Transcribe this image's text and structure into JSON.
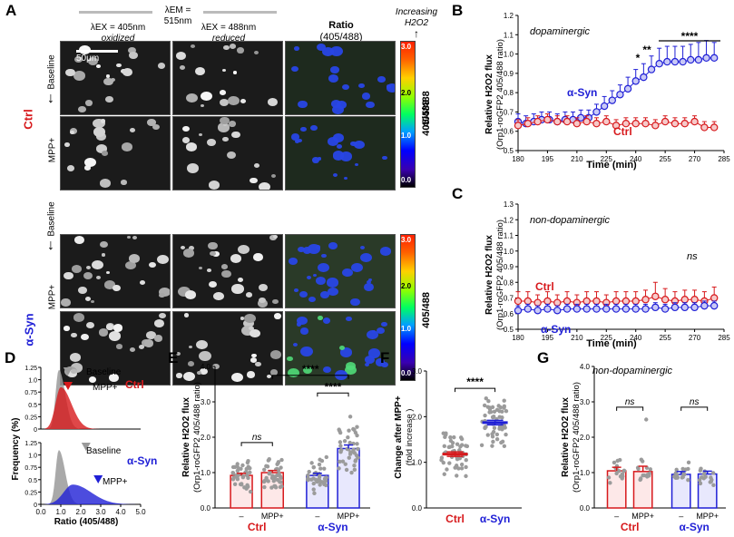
{
  "panelA": {
    "label": "A",
    "em_header": "λEM = 515nm",
    "col1": {
      "line1": "λEX = 405nm",
      "line2": "oxidized"
    },
    "col2": {
      "line1": "λEX = 488nm",
      "line2": "reduced"
    },
    "col3": {
      "line1": "Ratio",
      "line2": "(405/488)"
    },
    "colorbar_title": {
      "line1": "Increasing",
      "line2": "H2O2"
    },
    "scalebar": "50μm",
    "group1": "Ctrl",
    "group2": "α-Syn",
    "row_baseline": "Baseline",
    "row_mpp": "MPP+",
    "colorbar_ticks": [
      "3.0",
      "2.0",
      "1.0",
      "0.0"
    ],
    "colorbar_label": "405/488",
    "colors": {
      "ctrl": "#d7191c",
      "asyn": "#1f1fd6"
    }
  },
  "panelB": {
    "label": "B",
    "subtitle": "dopaminergic",
    "series_asyn": "α-Syn",
    "series_ctrl": "Ctrl",
    "sig": [
      "*",
      "**",
      "****"
    ]
  },
  "panelC": {
    "label": "C",
    "subtitle": "non-dopaminergic",
    "series_asyn": "α-Syn",
    "series_ctrl": "Ctrl",
    "ns": "ns"
  },
  "panelD": {
    "label": "D",
    "ylabel": "Frequency (%)",
    "xlabel": "Ratio (405/488)",
    "baseline": "Baseline",
    "mpp": "MPP+",
    "ctrl": "Ctrl",
    "asyn": "α-Syn"
  },
  "panelE": {
    "label": "E",
    "sig": [
      "ns",
      "****",
      "****"
    ],
    "xgroups": [
      "Ctrl",
      "α-Syn"
    ],
    "xcats": [
      "–",
      "MPP+",
      "–",
      "MPP+"
    ]
  },
  "panelF": {
    "label": "F",
    "ylabel1": "Change after MPP+",
    "ylabel2": "(fold increase )",
    "sig": "****"
  },
  "panelG": {
    "label": "G",
    "subtitle": "non-dopaminergic",
    "sig": [
      "ns",
      "ns"
    ],
    "xgroups": [
      "Ctrl",
      "α-Syn"
    ],
    "xcats": [
      "–",
      "MPP+",
      "–",
      "MPP+"
    ]
  },
  "ylabel_flux": {
    "line1": "Relative H2O2 flux",
    "line2": "(Orp1-roGFP2 405/488 ratio)"
  },
  "time_label": "Time (min)",
  "chart_data": [
    {
      "type": "line",
      "panel": "B",
      "title": "dopaminergic",
      "xlabel": "Time (min)",
      "ylabel": "Relative H2O2 flux (Orp1-roGFP2 405/488 ratio)",
      "xlim": [
        180,
        285
      ],
      "ylim": [
        0.5,
        1.2
      ],
      "xticks": [
        180,
        195,
        210,
        225,
        240,
        255,
        270,
        285
      ],
      "yticks": [
        0.5,
        0.6,
        0.7,
        0.8,
        0.9,
        1.0,
        1.1,
        1.2
      ],
      "series": [
        {
          "name": "α-Syn",
          "x": [
            180,
            184,
            188,
            192,
            196,
            200,
            204,
            208,
            212,
            216,
            220,
            224,
            228,
            232,
            236,
            240,
            244,
            248,
            252,
            256,
            260,
            264,
            268,
            272,
            276,
            280
          ],
          "y": [
            0.65,
            0.64,
            0.65,
            0.66,
            0.66,
            0.65,
            0.66,
            0.66,
            0.67,
            0.67,
            0.7,
            0.73,
            0.76,
            0.79,
            0.82,
            0.86,
            0.88,
            0.92,
            0.95,
            0.96,
            0.96,
            0.96,
            0.97,
            0.97,
            0.98,
            0.98
          ],
          "err": [
            0.04,
            0.04,
            0.04,
            0.04,
            0.04,
            0.04,
            0.04,
            0.04,
            0.04,
            0.04,
            0.04,
            0.05,
            0.05,
            0.05,
            0.06,
            0.06,
            0.07,
            0.07,
            0.08,
            0.08,
            0.08,
            0.08,
            0.08,
            0.09,
            0.09,
            0.08
          ]
        },
        {
          "name": "Ctrl",
          "x": [
            180,
            185,
            190,
            195,
            200,
            205,
            210,
            215,
            220,
            225,
            230,
            235,
            240,
            245,
            250,
            255,
            260,
            265,
            270,
            275,
            280
          ],
          "y": [
            0.63,
            0.64,
            0.65,
            0.66,
            0.65,
            0.65,
            0.64,
            0.65,
            0.64,
            0.65,
            0.63,
            0.64,
            0.64,
            0.64,
            0.63,
            0.65,
            0.64,
            0.64,
            0.65,
            0.62,
            0.62
          ],
          "err": [
            0.03,
            0.03,
            0.03,
            0.03,
            0.03,
            0.03,
            0.03,
            0.03,
            0.03,
            0.03,
            0.03,
            0.03,
            0.03,
            0.03,
            0.03,
            0.03,
            0.03,
            0.03,
            0.03,
            0.03,
            0.03
          ]
        }
      ]
    },
    {
      "type": "line",
      "panel": "C",
      "title": "non-dopaminergic",
      "xlabel": "Time (min)",
      "ylabel": "Relative H2O2 flux (Orp1-roGFP2 405/488 ratio)",
      "xlim": [
        180,
        285
      ],
      "ylim": [
        0.5,
        1.3
      ],
      "xticks": [
        180,
        195,
        210,
        225,
        240,
        255,
        270,
        285
      ],
      "yticks": [
        0.5,
        0.6,
        0.7,
        0.8,
        0.9,
        1.0,
        1.1,
        1.2,
        1.3
      ],
      "series": [
        {
          "name": "Ctrl",
          "x": [
            180,
            185,
            190,
            195,
            200,
            205,
            210,
            215,
            220,
            225,
            230,
            235,
            240,
            245,
            250,
            255,
            260,
            265,
            270,
            275,
            280
          ],
          "y": [
            0.68,
            0.68,
            0.67,
            0.68,
            0.67,
            0.68,
            0.67,
            0.68,
            0.68,
            0.67,
            0.68,
            0.68,
            0.68,
            0.69,
            0.71,
            0.69,
            0.68,
            0.69,
            0.69,
            0.68,
            0.7
          ],
          "err": [
            0.06,
            0.06,
            0.05,
            0.06,
            0.05,
            0.06,
            0.05,
            0.06,
            0.06,
            0.05,
            0.06,
            0.06,
            0.06,
            0.06,
            0.09,
            0.07,
            0.06,
            0.06,
            0.06,
            0.06,
            0.07
          ]
        },
        {
          "name": "α-Syn",
          "x": [
            180,
            185,
            190,
            195,
            200,
            205,
            210,
            215,
            220,
            225,
            230,
            235,
            240,
            245,
            250,
            255,
            260,
            265,
            270,
            275,
            280
          ],
          "y": [
            0.62,
            0.63,
            0.62,
            0.63,
            0.62,
            0.63,
            0.63,
            0.63,
            0.63,
            0.63,
            0.63,
            0.63,
            0.63,
            0.63,
            0.64,
            0.63,
            0.64,
            0.64,
            0.64,
            0.65,
            0.65
          ],
          "err": [
            0.03,
            0.03,
            0.03,
            0.03,
            0.03,
            0.03,
            0.03,
            0.03,
            0.03,
            0.03,
            0.03,
            0.03,
            0.03,
            0.03,
            0.03,
            0.03,
            0.03,
            0.03,
            0.03,
            0.03,
            0.03
          ]
        }
      ]
    },
    {
      "type": "area",
      "panel": "D",
      "xlabel": "Ratio (405/488)",
      "ylabel": "Frequency (%)",
      "xlim": [
        0.0,
        5.0
      ],
      "ylim": [
        0,
        1.25
      ],
      "xticks": [
        0.0,
        1.0,
        2.0,
        3.0,
        4.0,
        5.0
      ],
      "yticks": [
        0,
        0.25,
        0.5,
        0.75,
        1.0,
        1.25
      ],
      "subplots": [
        {
          "name": "Ctrl",
          "series": [
            {
              "name": "Baseline",
              "peak_x": 0.9,
              "peak_y": 1.2
            },
            {
              "name": "MPP+",
              "peak_x": 1.0,
              "peak_y": 0.85
            }
          ]
        },
        {
          "name": "α-Syn",
          "series": [
            {
              "name": "Baseline",
              "peak_x": 0.9,
              "peak_y": 1.1
            },
            {
              "name": "MPP+",
              "peak_x": 1.6,
              "peak_y": 0.4
            }
          ]
        }
      ]
    },
    {
      "type": "bar",
      "panel": "E",
      "ylabel": "Relative H2O2 flux (Orp1-roGFP2 405/488 ratio)",
      "categories": [
        "Ctrl –",
        "Ctrl MPP+",
        "α-Syn –",
        "α-Syn MPP+"
      ],
      "values": [
        0.92,
        1.0,
        0.92,
        1.68
      ],
      "err": [
        0.06,
        0.06,
        0.06,
        0.1
      ],
      "ylim": [
        0,
        4.0
      ],
      "yticks": [
        0.0,
        1.0,
        2.0,
        3.0,
        4.0
      ]
    },
    {
      "type": "scatter",
      "panel": "F",
      "ylabel": "Change after MPP+ (fold increase )",
      "categories": [
        "Ctrl",
        "α-Syn"
      ],
      "values": [
        1.18,
        1.87
      ],
      "err": [
        0.05,
        0.05
      ],
      "ylim": [
        0,
        3.0
      ],
      "yticks": [
        0.0,
        1.0,
        2.0,
        3.0
      ]
    },
    {
      "type": "bar",
      "panel": "G",
      "title": "non-dopaminergic",
      "ylabel": "Relative H2O2 flux (Orp1-roGFP2 405/488 ratio)",
      "categories": [
        "Ctrl –",
        "Ctrl MPP+",
        "α-Syn –",
        "α-Syn MPP+"
      ],
      "values": [
        1.05,
        1.03,
        0.95,
        0.96
      ],
      "err": [
        0.1,
        0.15,
        0.08,
        0.08
      ],
      "ylim": [
        0,
        4.0
      ],
      "yticks": [
        0.0,
        1.0,
        2.0,
        3.0,
        4.0
      ]
    }
  ]
}
